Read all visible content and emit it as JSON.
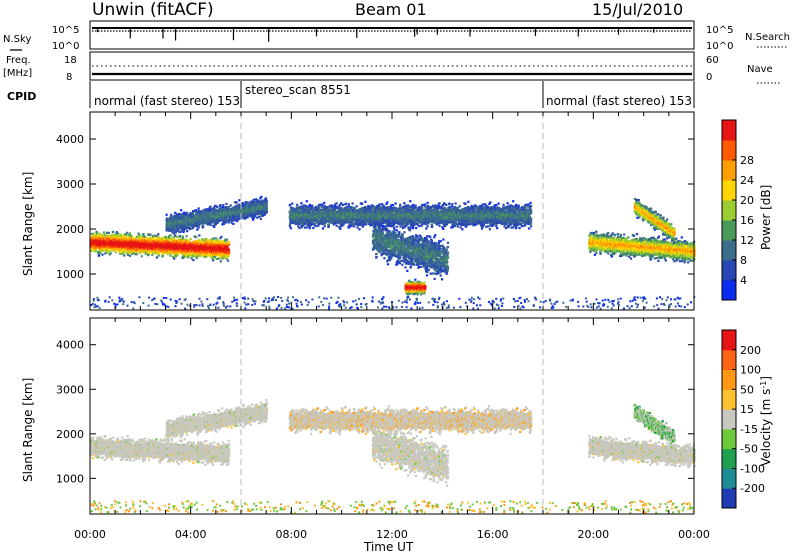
{
  "header": {
    "title": "Unwin (fitACF)",
    "beam": "Beam 01",
    "date": "15/Jul/2010"
  },
  "status_panels": {
    "nsky_label": "N.Sky",
    "nsearch_label": "N.Search",
    "nsky_ticks": [
      "10^5",
      "10^0"
    ],
    "nsearch_ticks": [
      "10^5",
      "10^0"
    ],
    "freq_label": "Freq.",
    "freq_unit": "[MHz]",
    "freq_ticks": [
      "18",
      "8"
    ],
    "nave_label": "Nave",
    "nave_ticks": [
      "60",
      "0"
    ],
    "cpid_label": "CPID",
    "cpid_segments": [
      {
        "label": "normal (fast stereo)  153",
        "start_hr": 0
      },
      {
        "label": "stereo_scan 8551",
        "start_hr": 6
      },
      {
        "label": "normal (fast stereo)  153",
        "start_hr": 18
      }
    ]
  },
  "chart_data": [
    {
      "type": "heatmap",
      "title": "",
      "ylabel": "Slant Range [km]",
      "ylim": [
        200,
        4600
      ],
      "yticks": [
        1000,
        2000,
        3000,
        4000
      ],
      "xlim_hr": [
        0,
        24
      ],
      "colorbar": {
        "label": "Power [dB]",
        "ticks": [
          "4",
          "8",
          "12",
          "16",
          "20",
          "24",
          "28"
        ],
        "colors": [
          "#0a2cf0",
          "#2846b4",
          "#3c6e8c",
          "#4a9a5a",
          "#9acd32",
          "#ffd700",
          "#ffa000",
          "#ff5a00",
          "#e61414"
        ]
      },
      "echo_regions": [
        {
          "t": [
            0.0,
            5.5
          ],
          "r_center": [
            1700,
            1550
          ],
          "r_width": 500,
          "level": "high"
        },
        {
          "t": [
            3.0,
            7.0
          ],
          "r_center": [
            2100,
            2500
          ],
          "r_width": 450,
          "level": "low"
        },
        {
          "t": [
            7.9,
            17.5
          ],
          "r_center": [
            2300,
            2300
          ],
          "r_width": 550,
          "level": "low"
        },
        {
          "t": [
            11.2,
            14.2
          ],
          "r_center": [
            1800,
            1300
          ],
          "r_width": 900,
          "level": "low"
        },
        {
          "t": [
            12.5,
            13.3
          ],
          "r_center": [
            700,
            700
          ],
          "r_width": 300,
          "level": "high"
        },
        {
          "t": [
            19.8,
            24.0
          ],
          "r_center": [
            1700,
            1500
          ],
          "r_width": 500,
          "level": "mid"
        },
        {
          "t": [
            21.6,
            23.2
          ],
          "r_center": [
            2500,
            1900
          ],
          "r_width": 400,
          "level": "mid"
        }
      ]
    },
    {
      "type": "heatmap",
      "title": "",
      "ylabel": "Slant Range [km]",
      "ylim": [
        200,
        4600
      ],
      "yticks": [
        1000,
        2000,
        3000,
        4000
      ],
      "xlim_hr": [
        0,
        24
      ],
      "xlabel": "Time UT",
      "xticks": [
        "00:00",
        "04:00",
        "08:00",
        "12:00",
        "16:00",
        "20:00",
        "00:00"
      ],
      "colorbar": {
        "label": "Velocity [m s",
        "label_sup": "-1",
        "label_end": "]",
        "ticks": [
          "200",
          "100",
          "50",
          "15",
          "-15",
          "-50",
          "-100",
          "-200"
        ],
        "colors": [
          "#1e3cb4",
          "#1e8c96",
          "#1ea050",
          "#6ec83c",
          "#c8c8c0",
          "#ffc030",
          "#ff9614",
          "#ff6414",
          "#e61414"
        ]
      },
      "echo_regions": [
        {
          "t": [
            0.0,
            5.5
          ],
          "r_center": [
            1700,
            1550
          ],
          "r_width": 500,
          "level": "ground"
        },
        {
          "t": [
            3.0,
            7.0
          ],
          "r_center": [
            2100,
            2500
          ],
          "r_width": 450,
          "level": "ground"
        },
        {
          "t": [
            7.9,
            17.5
          ],
          "r_center": [
            2300,
            2300
          ],
          "r_width": 550,
          "level": "neg"
        },
        {
          "t": [
            11.2,
            14.2
          ],
          "r_center": [
            1800,
            1300
          ],
          "r_width": 900,
          "level": "ground"
        },
        {
          "t": [
            19.8,
            24.0
          ],
          "r_center": [
            1700,
            1500
          ],
          "r_width": 500,
          "level": "ground"
        },
        {
          "t": [
            21.6,
            23.2
          ],
          "r_center": [
            2500,
            1900
          ],
          "r_width": 400,
          "level": "pos"
        }
      ]
    }
  ]
}
